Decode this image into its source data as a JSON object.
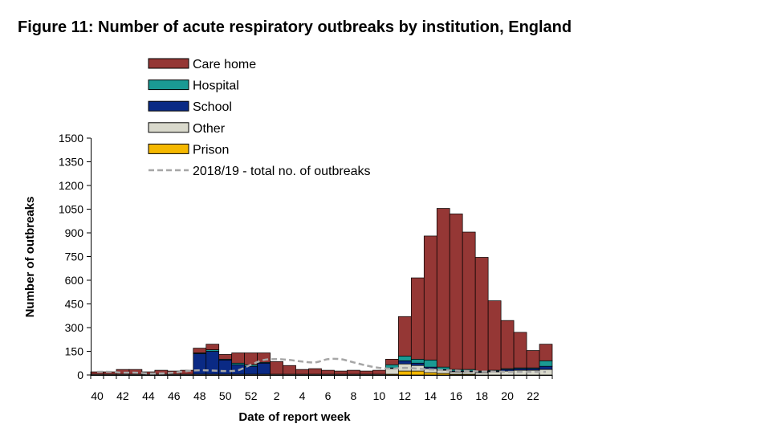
{
  "chart_data": {
    "type": "bar",
    "stacked": true,
    "title": "Figure 11: Number of acute respiratory outbreaks by institution, England",
    "xlabel": "Date of report week",
    "ylabel": "Number of outbreaks",
    "ylim": [
      0,
      1500
    ],
    "yticks": [
      0,
      150,
      300,
      450,
      600,
      750,
      900,
      1050,
      1200,
      1350,
      1500
    ],
    "grid": false,
    "legend_position": "top-center",
    "weeks": [
      40,
      41,
      42,
      43,
      44,
      45,
      46,
      47,
      48,
      49,
      50,
      51,
      52,
      1,
      2,
      3,
      4,
      5,
      6,
      7,
      8,
      9,
      10,
      11,
      12,
      13,
      14,
      15,
      16,
      17,
      18,
      19,
      20,
      21,
      22,
      23
    ],
    "tick_labels": [
      "40",
      "42",
      "44",
      "46",
      "48",
      "50",
      "52",
      "2",
      "4",
      "6",
      "8",
      "10",
      "12",
      "14",
      "16",
      "18",
      "20",
      "22"
    ],
    "series": [
      {
        "name": "Prison",
        "color": "#f5b800",
        "values": [
          0,
          0,
          0,
          0,
          0,
          0,
          0,
          0,
          0,
          0,
          0,
          0,
          0,
          0,
          0,
          0,
          0,
          0,
          0,
          0,
          0,
          0,
          0,
          5,
          25,
          25,
          15,
          10,
          5,
          5,
          0,
          0,
          0,
          0,
          0,
          0
        ]
      },
      {
        "name": "Other",
        "color": "#d9d9cc",
        "values": [
          5,
          5,
          5,
          5,
          5,
          5,
          5,
          5,
          5,
          5,
          5,
          5,
          5,
          5,
          5,
          5,
          5,
          5,
          5,
          5,
          5,
          5,
          5,
          35,
          45,
          35,
          25,
          20,
          15,
          15,
          15,
          20,
          25,
          30,
          30,
          35
        ]
      },
      {
        "name": "School",
        "color": "#0a2a85",
        "values": [
          0,
          0,
          0,
          0,
          0,
          0,
          0,
          0,
          130,
          145,
          90,
          60,
          50,
          70,
          0,
          0,
          0,
          0,
          0,
          0,
          0,
          0,
          0,
          5,
          20,
          15,
          10,
          5,
          5,
          5,
          5,
          5,
          10,
          10,
          10,
          20
        ]
      },
      {
        "name": "Hospital",
        "color": "#1a9a94",
        "values": [
          0,
          0,
          0,
          0,
          0,
          0,
          0,
          0,
          5,
          10,
          5,
          10,
          10,
          5,
          0,
          0,
          0,
          0,
          0,
          0,
          0,
          0,
          0,
          20,
          30,
          25,
          45,
          15,
          10,
          10,
          5,
          5,
          5,
          5,
          5,
          35
        ]
      },
      {
        "name": "Care home",
        "color": "#953735",
        "values": [
          15,
          15,
          30,
          30,
          15,
          25,
          20,
          25,
          30,
          35,
          30,
          65,
          75,
          60,
          80,
          55,
          30,
          35,
          25,
          20,
          25,
          20,
          25,
          35,
          250,
          515,
          785,
          1005,
          985,
          870,
          720,
          440,
          305,
          225,
          110,
          105
        ]
      }
    ],
    "reference_line": {
      "name": "2018/19 - total no. of outbreaks",
      "color": "#a6a6a6",
      "style": "dashed",
      "values": [
        20,
        20,
        15,
        15,
        10,
        10,
        15,
        25,
        30,
        28,
        25,
        30,
        65,
        95,
        100,
        95,
        85,
        80,
        100,
        100,
        80,
        60,
        45,
        40,
        45,
        40,
        35,
        30,
        28,
        25,
        22,
        22,
        20,
        20,
        20,
        20
      ]
    }
  }
}
